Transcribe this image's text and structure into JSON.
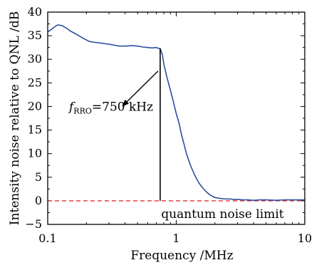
{
  "chart_data": {
    "type": "line",
    "xscale": "log",
    "xlabel": "Frequency /MHz",
    "ylabel": "Intensity noise relative to QNL /dB",
    "xlim": [
      0.1,
      10
    ],
    "ylim": [
      -5,
      40
    ],
    "xticks": [
      {
        "value": 0.1,
        "label": "0.1"
      },
      {
        "value": 1,
        "label": "1"
      },
      {
        "value": 10,
        "label": "10"
      }
    ],
    "yticks": [
      {
        "value": -5,
        "label": "−5"
      },
      {
        "value": 0,
        "label": "0"
      },
      {
        "value": 5,
        "label": "5"
      },
      {
        "value": 10,
        "label": "10"
      },
      {
        "value": 15,
        "label": "15"
      },
      {
        "value": 20,
        "label": "20"
      },
      {
        "value": 25,
        "label": "25"
      },
      {
        "value": 30,
        "label": "30"
      },
      {
        "value": 35,
        "label": "35"
      },
      {
        "value": 40,
        "label": "40"
      }
    ],
    "grid": false,
    "series": [
      {
        "color": "#2b4f9e",
        "x": [
          0.1,
          0.105,
          0.11,
          0.115,
          0.12,
          0.13,
          0.14,
          0.15,
          0.17,
          0.19,
          0.21,
          0.23,
          0.25,
          0.28,
          0.3,
          0.33,
          0.36,
          0.4,
          0.45,
          0.5,
          0.55,
          0.6,
          0.65,
          0.7,
          0.73,
          0.75,
          0.78,
          0.8,
          0.85,
          0.9,
          0.95,
          1.0,
          1.05,
          1.1,
          1.15,
          1.2,
          1.3,
          1.4,
          1.5,
          1.6,
          1.7,
          1.8,
          1.9,
          2.0,
          2.2,
          2.4,
          2.6,
          2.8,
          3.0,
          3.3,
          3.6,
          4.0,
          4.5,
          5.0,
          6.0,
          7.0,
          8.0,
          9.0,
          10.0
        ],
        "y": [
          35.8,
          36.2,
          36.6,
          37.0,
          37.3,
          37.1,
          36.6,
          36.0,
          35.2,
          34.4,
          33.8,
          33.6,
          33.5,
          33.3,
          33.2,
          33.0,
          32.8,
          32.8,
          32.9,
          32.8,
          32.6,
          32.5,
          32.4,
          32.5,
          32.3,
          32.3,
          31.0,
          29.0,
          26.0,
          23.5,
          21.0,
          18.5,
          16.5,
          14.0,
          12.0,
          10.0,
          7.3,
          5.3,
          3.8,
          2.8,
          2.0,
          1.4,
          1.0,
          0.7,
          0.5,
          0.4,
          0.4,
          0.3,
          0.3,
          0.2,
          0.2,
          0.1,
          0.2,
          0.2,
          0.1,
          0.2,
          0.2,
          0.2,
          0.2
        ]
      }
    ],
    "reference_lines": [
      {
        "label": "quantum noise limit",
        "y": 0,
        "style": "dashed",
        "color": "#e03030"
      }
    ],
    "annotations": [
      {
        "label_main": "f",
        "label_sub": "RRO",
        "label_rest": "=750 kHz",
        "x": 0.75,
        "y_bottom": 0,
        "y_top": 32.3
      }
    ]
  }
}
